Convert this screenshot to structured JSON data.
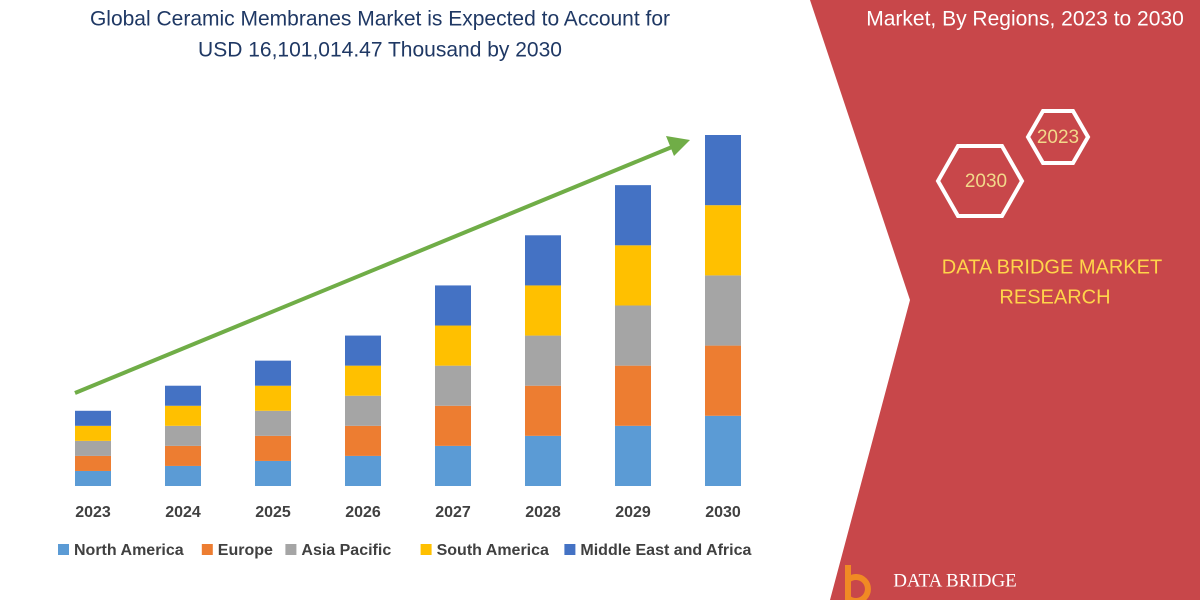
{
  "chart_data": {
    "type": "stacked_bar",
    "title": "Global Ceramic Membranes Market is Expected to Account for",
    "subtitle": "USD 16,101,014.47 Thousand by 2030",
    "categories": [
      "2023",
      "2024",
      "2025",
      "2026",
      "2027",
      "2028",
      "2029",
      "2030"
    ],
    "series": [
      {
        "name": "North America",
        "color": "#5b9bd5",
        "values": [
          15,
          20,
          25,
          30,
          40,
          50,
          60,
          70
        ]
      },
      {
        "name": "Europe",
        "color": "#ed7d31",
        "values": [
          15,
          20,
          25,
          30,
          40,
          50,
          60,
          70
        ]
      },
      {
        "name": "Asia Pacific",
        "color": "#a5a5a5",
        "values": [
          15,
          20,
          25,
          30,
          40,
          50,
          60,
          70
        ]
      },
      {
        "name": "South America",
        "color": "#ffc000",
        "values": [
          15,
          20,
          25,
          30,
          40,
          50,
          60,
          70
        ]
      },
      {
        "name": "Middle East and Africa",
        "color": "#4472c4",
        "values": [
          15,
          20,
          25,
          30,
          40,
          50,
          60,
          70
        ]
      }
    ]
  },
  "panel": {
    "heading": "Market, By Regions, 2023 to 2030",
    "hex_start": "2023",
    "hex_end": "2030",
    "brand": [
      "DATA BRIDGE MARKET",
      "RESEARCH"
    ],
    "logo": "DATA BRIDGE"
  }
}
